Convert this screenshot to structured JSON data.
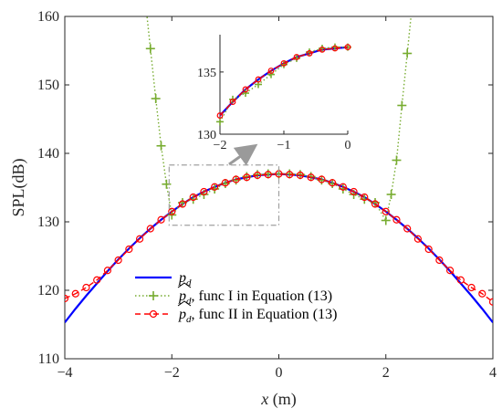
{
  "chart_data": {
    "type": "line",
    "xlabel": "x (m)",
    "ylabel": "SPL(dB)",
    "xlim": [
      -4,
      4
    ],
    "ylim": [
      110,
      160
    ],
    "xticks": [
      "−4",
      "−2",
      "0",
      "2",
      "4"
    ],
    "yticks": [
      "110",
      "120",
      "130",
      "140",
      "150",
      "160"
    ],
    "grid": false,
    "legend_position": "bottom-left",
    "legend_entries": [
      "p_d",
      "p̂_d, func I in Equation (13)",
      "p̂_d, func II in Equation (13)"
    ],
    "series": [
      {
        "name": "p_d",
        "color": "#0000ff",
        "style": "solid",
        "x": [
          -4,
          -3.8,
          -3.6,
          -3.4,
          -3.2,
          -3.0,
          -2.8,
          -2.6,
          -2.4,
          -2.2,
          -2.0,
          -1.8,
          -1.6,
          -1.4,
          -1.2,
          -1.0,
          -0.8,
          -0.6,
          -0.4,
          -0.2,
          0,
          0.2,
          0.4,
          0.6,
          0.8,
          1.0,
          1.2,
          1.4,
          1.6,
          1.8,
          2.0,
          2.2,
          2.4,
          2.6,
          2.8,
          3.0,
          3.2,
          3.4,
          3.6,
          3.8,
          4.0
        ],
        "y": [
          115.3,
          117.3,
          119.2,
          121.0,
          122.8,
          124.5,
          126.1,
          127.6,
          129.0,
          130.3,
          131.5,
          132.6,
          133.6,
          134.4,
          135.1,
          135.7,
          136.2,
          136.5,
          136.8,
          136.9,
          137.0,
          136.9,
          136.8,
          136.5,
          136.2,
          135.7,
          135.1,
          134.4,
          133.6,
          132.6,
          131.5,
          130.3,
          129.0,
          127.6,
          126.1,
          124.5,
          122.8,
          121.0,
          119.2,
          117.3,
          115.3
        ]
      },
      {
        "name": "func I",
        "color": "#77ac30",
        "style": "dotted",
        "marker": "plus",
        "x": [
          -2.6,
          -2.4,
          -2.3,
          -2.2,
          -2.1,
          -2.0,
          -1.8,
          -1.6,
          -1.4,
          -1.2,
          -1.0,
          -0.8,
          -0.6,
          -0.4,
          -0.2,
          0,
          0.2,
          0.4,
          0.6,
          0.8,
          1.0,
          1.2,
          1.4,
          1.6,
          1.8,
          2.0,
          2.1,
          2.2,
          2.3,
          2.4,
          2.6
        ],
        "y": [
          170,
          155.3,
          148.0,
          141.1,
          135.5,
          131.0,
          132.8,
          133.3,
          134.0,
          134.8,
          135.6,
          136.1,
          136.6,
          136.9,
          137.0,
          137.0,
          137.0,
          136.9,
          136.6,
          136.1,
          135.6,
          134.8,
          134.0,
          133.3,
          132.8,
          130.2,
          134.0,
          139.0,
          147.0,
          154.6,
          170
        ]
      },
      {
        "name": "func II",
        "color": "#ff0000",
        "style": "dashed",
        "marker": "circle",
        "x": [
          -4,
          -3.8,
          -3.6,
          -3.4,
          -3.2,
          -3.0,
          -2.8,
          -2.6,
          -2.4,
          -2.2,
          -2.0,
          -1.8,
          -1.6,
          -1.4,
          -1.2,
          -1.0,
          -0.8,
          -0.6,
          -0.4,
          -0.2,
          0,
          0.2,
          0.4,
          0.6,
          0.8,
          1.0,
          1.2,
          1.4,
          1.6,
          1.8,
          2.0,
          2.2,
          2.4,
          2.6,
          2.8,
          3.0,
          3.2,
          3.4,
          3.6,
          3.8,
          4.0
        ],
        "y": [
          118.8,
          119.5,
          120.4,
          121.5,
          122.9,
          124.4,
          126.0,
          127.5,
          129.0,
          130.3,
          131.5,
          132.6,
          133.6,
          134.4,
          135.1,
          135.7,
          136.2,
          136.5,
          136.8,
          136.9,
          137.0,
          136.9,
          136.8,
          136.5,
          136.2,
          135.7,
          135.1,
          134.4,
          133.6,
          132.6,
          131.5,
          130.3,
          129.0,
          127.5,
          126.0,
          124.4,
          122.9,
          121.5,
          120.4,
          119.5,
          118.3
        ]
      }
    ],
    "zoom_box": {
      "x": [
        -2.05,
        0
      ],
      "y": [
        129.5,
        138.3
      ]
    },
    "inset": {
      "xlim": [
        -2,
        0
      ],
      "ylim": [
        130,
        138
      ],
      "xticks": [
        "−2",
        "−1",
        "0"
      ],
      "yticks": [
        "130",
        "135"
      ]
    }
  }
}
